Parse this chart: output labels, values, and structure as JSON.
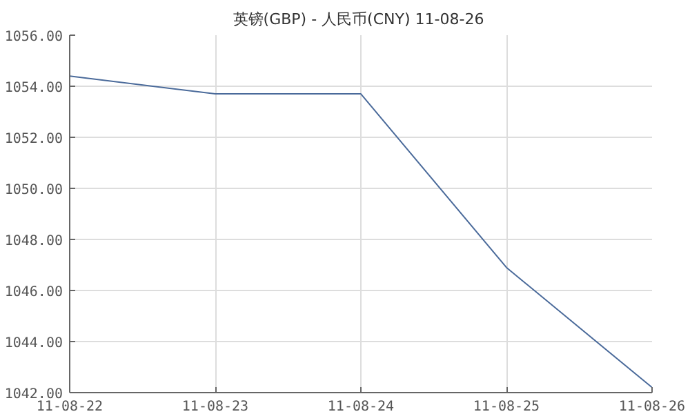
{
  "chart_data": {
    "type": "line",
    "title": "英镑(GBP) - 人民币(CNY)  11-08-26",
    "categories": [
      "11-08-22",
      "11-08-23",
      "11-08-24",
      "11-08-25",
      "11-08-26"
    ],
    "series": [
      {
        "color": "#4a6a9a",
        "values": [
          1054.4,
          1053.7,
          1053.7,
          1046.9,
          1042.2
        ]
      }
    ],
    "ylim": [
      1042,
      1056
    ],
    "yticks": [
      {
        "value": 1042,
        "label": "1042.00"
      },
      {
        "value": 1044,
        "label": "1044.00"
      },
      {
        "value": 1046,
        "label": "1046.00"
      },
      {
        "value": 1048,
        "label": "1048.00"
      },
      {
        "value": 1050,
        "label": "1050.00"
      },
      {
        "value": 1052,
        "label": "1052.00"
      },
      {
        "value": 1054,
        "label": "1054.00"
      },
      {
        "value": 1056,
        "label": "1056.00"
      }
    ],
    "grid": true
  }
}
